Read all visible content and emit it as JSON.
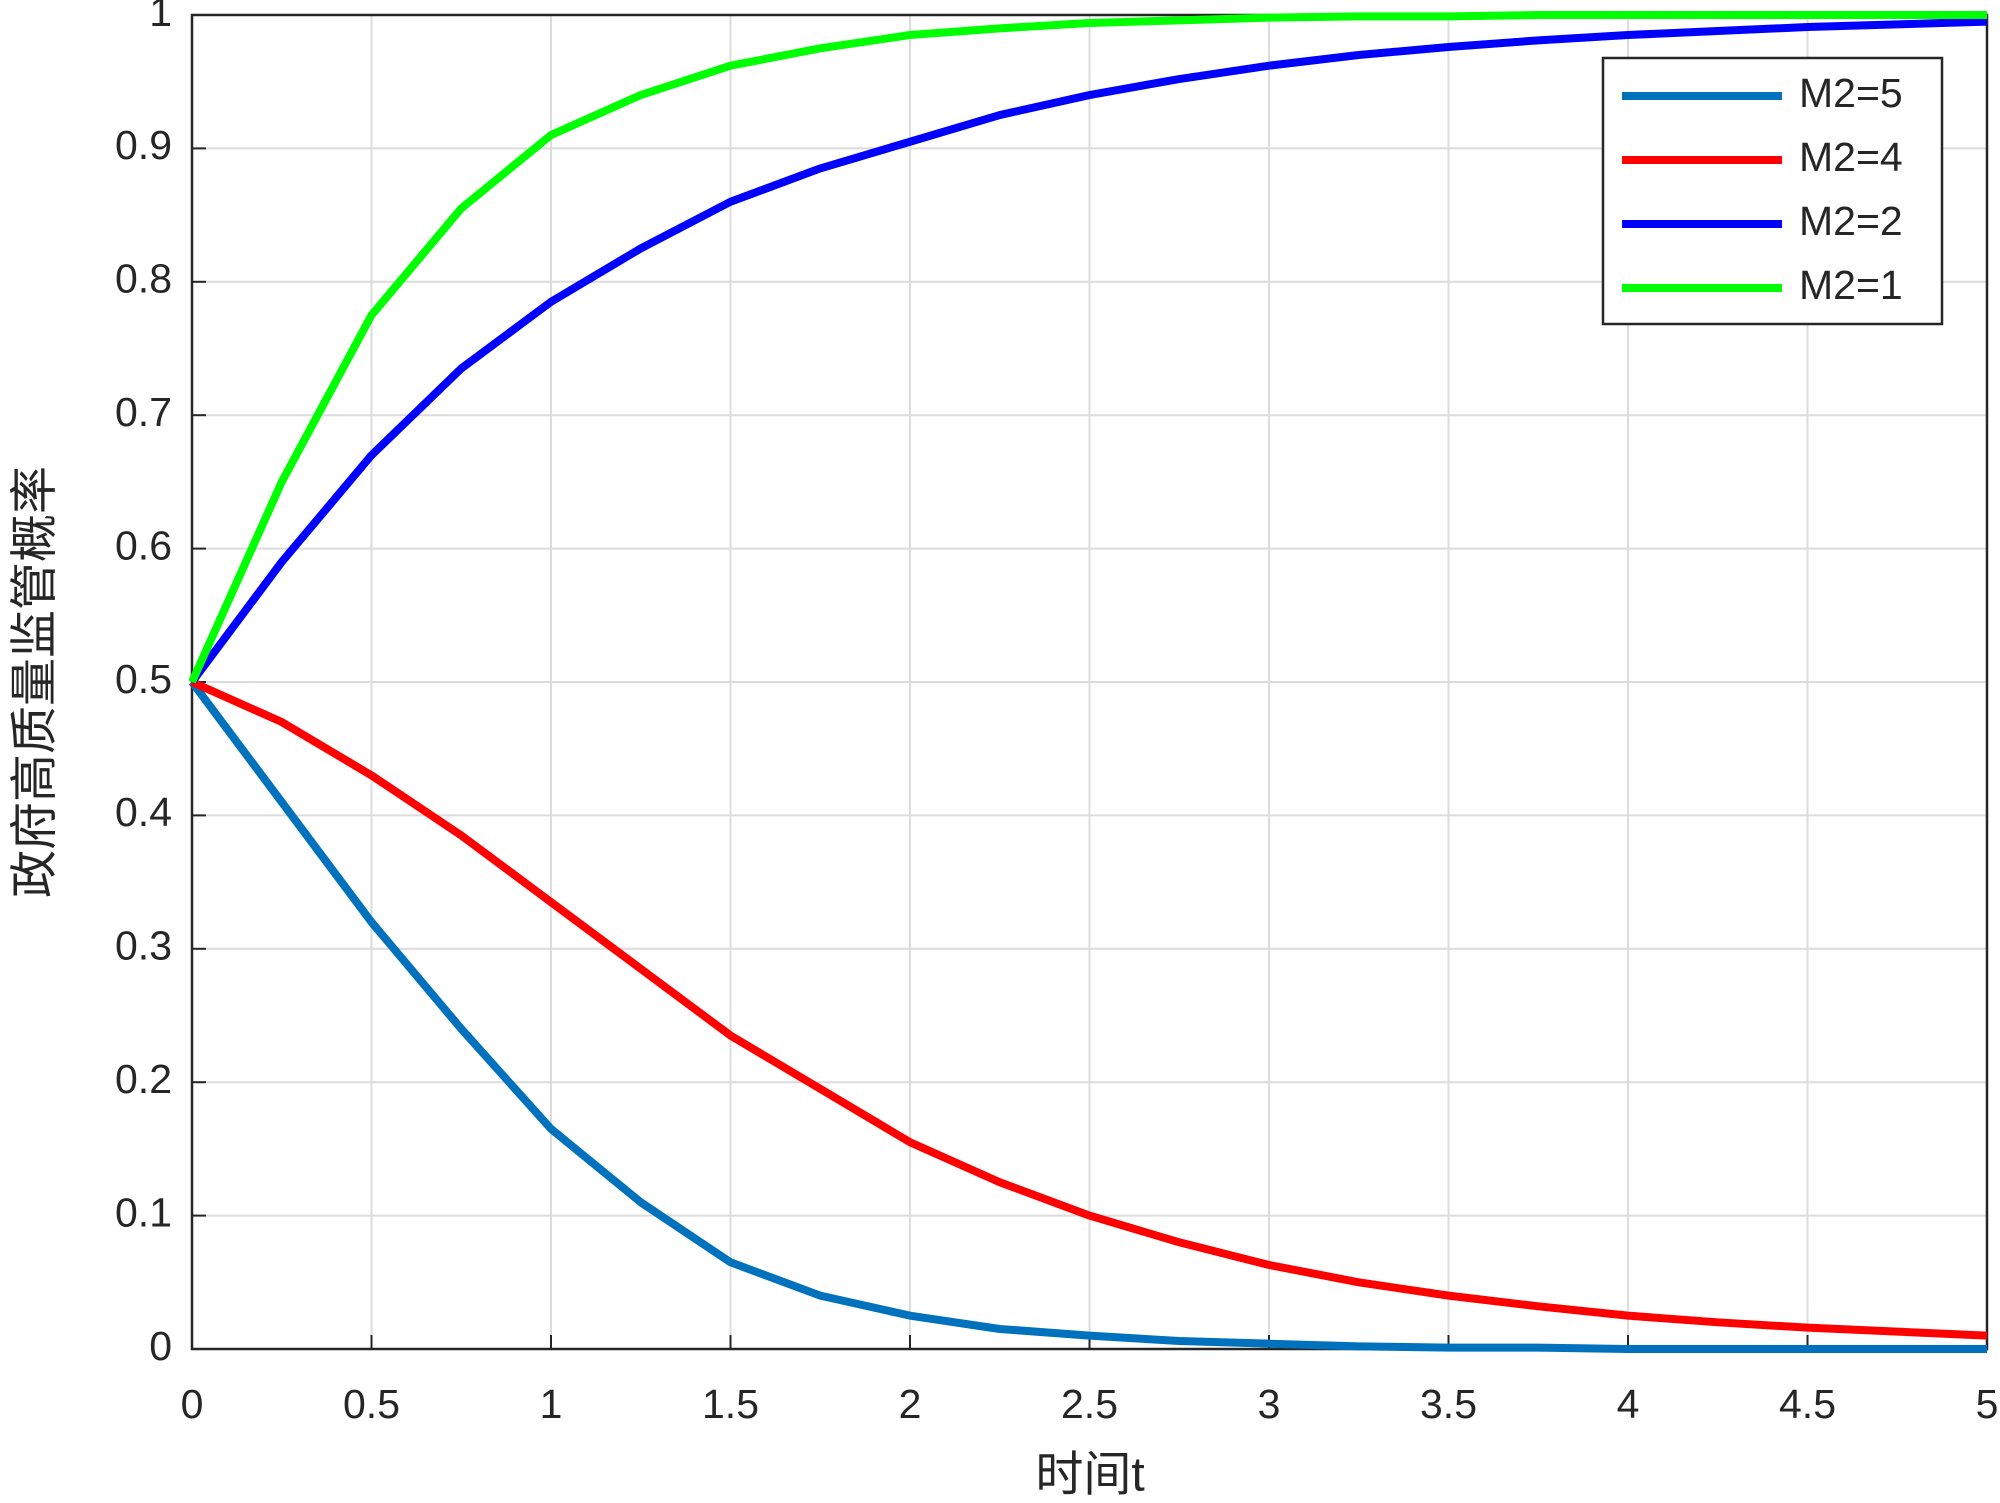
{
  "chart_data": {
    "type": "line",
    "xlabel": "时间t",
    "ylabel": "政府高质量监管概率",
    "x": [
      0,
      0.25,
      0.5,
      0.75,
      1,
      1.25,
      1.5,
      1.75,
      2,
      2.25,
      2.5,
      2.75,
      3,
      3.25,
      3.5,
      3.75,
      4,
      4.25,
      4.5,
      4.75,
      5
    ],
    "series": [
      {
        "name": "M2=5",
        "color": "#0072bd",
        "values": [
          0.5,
          0.41,
          0.32,
          0.24,
          0.165,
          0.11,
          0.065,
          0.04,
          0.025,
          0.015,
          0.01,
          0.006,
          0.004,
          0.002,
          0.001,
          0.001,
          0,
          0,
          0,
          0,
          0
        ]
      },
      {
        "name": "M2=4",
        "color": "#ff0000",
        "values": [
          0.5,
          0.47,
          0.43,
          0.385,
          0.335,
          0.285,
          0.235,
          0.195,
          0.155,
          0.125,
          0.1,
          0.08,
          0.063,
          0.05,
          0.04,
          0.032,
          0.025,
          0.02,
          0.016,
          0.013,
          0.01
        ]
      },
      {
        "name": "M2=2",
        "color": "#0000ff",
        "values": [
          0.5,
          0.59,
          0.67,
          0.735,
          0.785,
          0.825,
          0.86,
          0.885,
          0.905,
          0.925,
          0.94,
          0.952,
          0.962,
          0.97,
          0.976,
          0.981,
          0.985,
          0.988,
          0.991,
          0.993,
          0.995
        ]
      },
      {
        "name": "M2=1",
        "color": "#00ff00",
        "values": [
          0.5,
          0.65,
          0.775,
          0.855,
          0.91,
          0.94,
          0.962,
          0.975,
          0.985,
          0.99,
          0.994,
          0.996,
          0.998,
          0.999,
          0.999,
          1,
          1,
          1,
          1,
          1,
          1
        ]
      }
    ],
    "xlim": [
      0,
      5
    ],
    "xticks": [
      0,
      0.5,
      1,
      1.5,
      2,
      2.5,
      3,
      3.5,
      4,
      4.5,
      5
    ],
    "ylim": [
      0,
      1
    ],
    "yticks": [
      0,
      0.1,
      0.2,
      0.3,
      0.4,
      0.5,
      0.6,
      0.7,
      0.8,
      0.9,
      1
    ],
    "grid": true,
    "legend": "northeast"
  }
}
